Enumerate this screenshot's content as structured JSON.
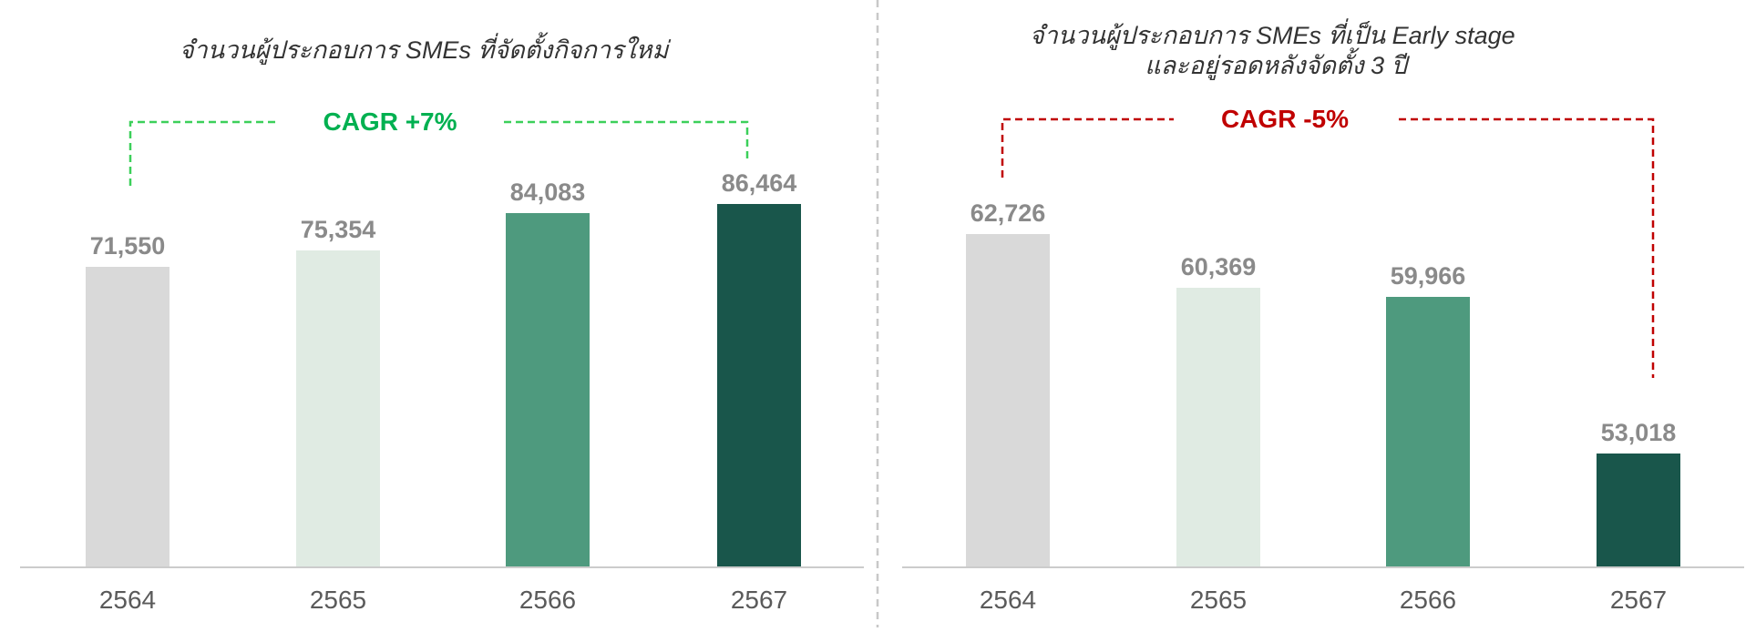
{
  "colors": {
    "bars": [
      "#d9d9d9",
      "#e0ebe3",
      "#4e9a7e",
      "#19564b"
    ],
    "value_text": "#8a8a8a",
    "tick_text": "#5a5a5a",
    "axis": "#cccccc",
    "divider": "#c8c8c8",
    "cagr_positive": "#00b050",
    "cagr_positive_line": "#3cd05a",
    "cagr_negative": "#c00000"
  },
  "chart_data": [
    {
      "type": "bar",
      "title": "จำนวนผู้ประกอบการ SMEs ที่จัดตั้งกิจการใหม่",
      "title_lines": [
        "จำนวนผู้ประกอบการ SMEs ที่จัดตั้งกิจการใหม่"
      ],
      "categories": [
        "2564",
        "2565",
        "2566",
        "2567"
      ],
      "values": [
        71550,
        75354,
        84083,
        86464
      ],
      "value_labels": [
        "71,550",
        "75,354",
        "84,083",
        "86,464"
      ],
      "xlabel": "",
      "ylabel": "",
      "ylim": [
        0,
        100000
      ],
      "grid": false,
      "annotation": {
        "text": "CAGR +7%",
        "trend": "up"
      }
    },
    {
      "type": "bar",
      "title": "จำนวนผู้ประกอบการ SMEs ที่เป็น Early stage และอยู่รอดหลังจัดตั้ง 3 ปี",
      "title_lines": [
        "จำนวนผู้ประกอบการ SMEs ที่เป็น Early stage",
        "และอยู่รอดหลังจัดตั้ง 3 ปี"
      ],
      "categories": [
        "2564",
        "2565",
        "2566",
        "2567"
      ],
      "values": [
        62726,
        60369,
        59966,
        53018
      ],
      "value_labels": [
        "62,726",
        "60,369",
        "59,966",
        "53,018"
      ],
      "xlabel": "",
      "ylabel": "",
      "ylim": [
        40000,
        70000
      ],
      "grid": false,
      "annotation": {
        "text": "CAGR -5%",
        "trend": "down"
      }
    }
  ]
}
